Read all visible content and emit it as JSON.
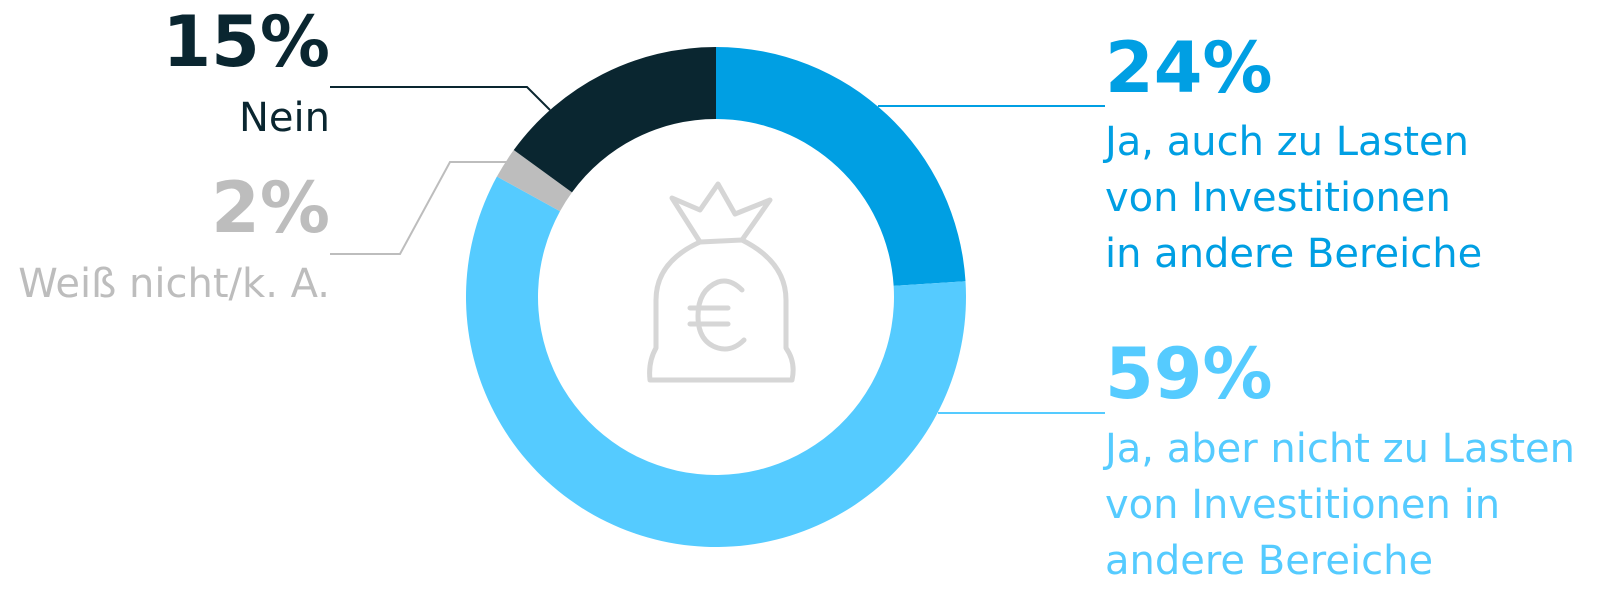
{
  "chart_data": {
    "type": "donut",
    "categories": [
      "Ja, auch zu Lasten von Investitionen in andere Bereiche",
      "Ja, aber nicht zu Lasten von Investitionen in andere Bereiche",
      "Weiß nicht/k. A.",
      "Nein"
    ],
    "values": [
      24,
      59,
      2,
      15
    ],
    "value_labels": [
      "24%",
      "59%",
      "2%",
      "15%"
    ],
    "colors": [
      "#009fe3",
      "#55cbff",
      "#bdbdbd",
      "#0a2630"
    ]
  }
}
